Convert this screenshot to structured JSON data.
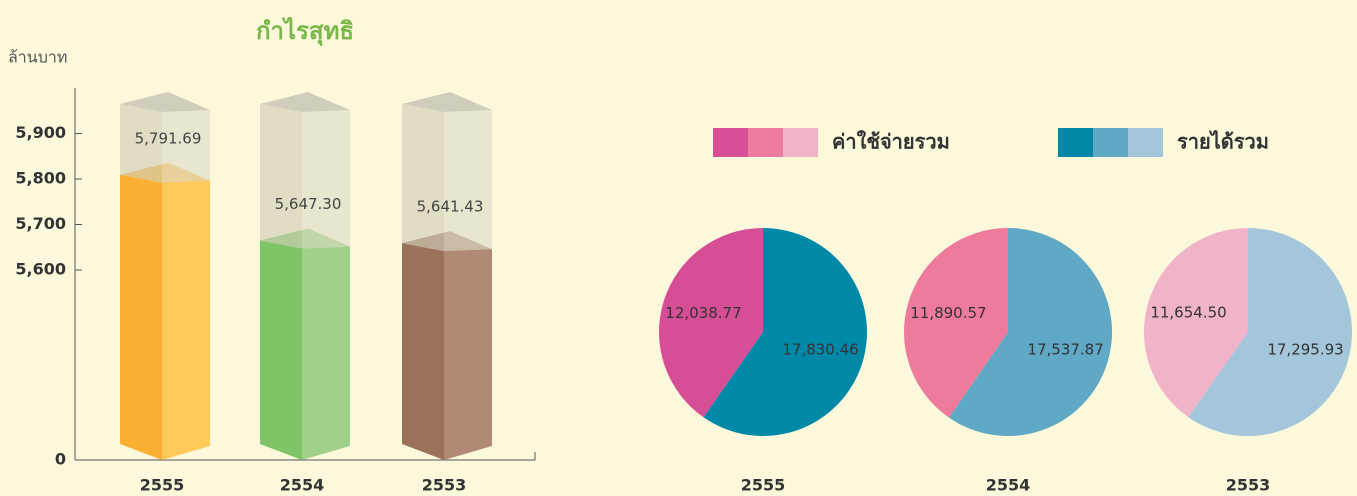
{
  "chart_data": [
    {
      "type": "bar",
      "title": "กำไรสุทธิ",
      "y_label": "ล้านบาท",
      "categories": [
        "2555",
        "2554",
        "2553"
      ],
      "values": [
        5791.69,
        5647.3,
        5641.43
      ],
      "value_labels": [
        "5,791.69",
        "5,647.30",
        "5,641.43"
      ],
      "colors": [
        [
          "#fbb034",
          "#ffc95a"
        ],
        [
          "#80c468",
          "#a0d08a"
        ],
        [
          "#9c715a",
          "#b08a75"
        ]
      ],
      "ylim": [
        0,
        6000
      ],
      "yticks": [
        0,
        {
          "value": 5600,
          "label": "5,600"
        },
        {
          "value": 5700,
          "label": "5,700"
        },
        {
          "value": 5800,
          "label": "5,800"
        },
        {
          "value": 5900,
          "label": "5,900"
        }
      ]
    },
    {
      "type": "pie",
      "categories": [
        "2555",
        "2554",
        "2553"
      ],
      "series": [
        {
          "name": "ค่าใช้จ่ายรวม",
          "colors": [
            "#d64f96",
            "#ee7b9b",
            "#f0b3c8"
          ],
          "values": [
            12038.77,
            11890.57,
            11654.5
          ],
          "value_labels": [
            "12,038.77",
            "11,890.57",
            "11,654.50"
          ]
        },
        {
          "name": "รายได้รวม",
          "colors": [
            "#0088a8",
            "#5fa8c6",
            "#a3c6da"
          ],
          "values": [
            17830.46,
            17537.87,
            17295.93
          ],
          "value_labels": [
            "17,830.46",
            "17,537.87",
            "17,295.93"
          ]
        }
      ]
    }
  ]
}
